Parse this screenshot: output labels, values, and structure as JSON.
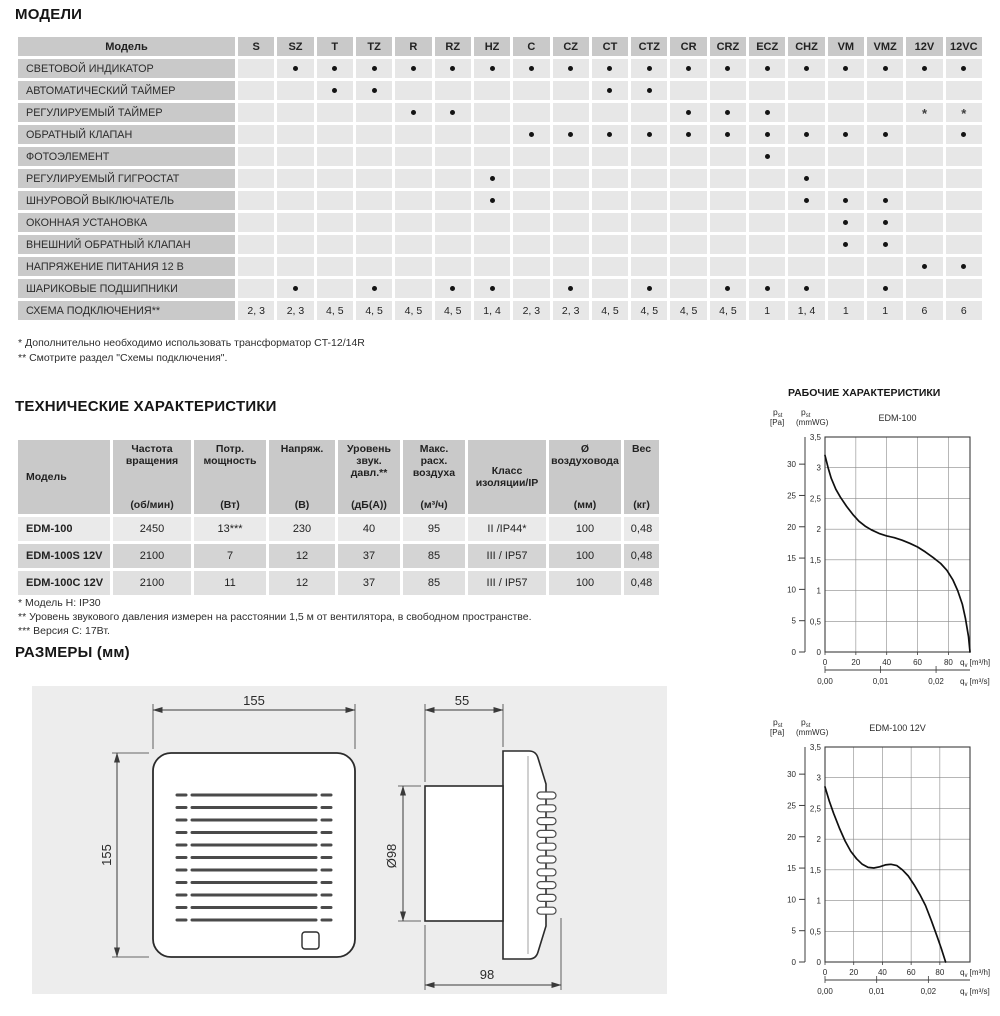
{
  "page": {
    "title_models": "МОДЕЛИ",
    "title_tech": "ТЕХНИЧЕСКИЕ ХАРАКТЕРИСТИКИ",
    "title_dims": "РАЗМЕРЫ (мм)",
    "title_charts": "РАБОЧИЕ ХАРАКТЕРИСТИКИ"
  },
  "models_table": {
    "header_label": "Модель",
    "columns": [
      "S",
      "SZ",
      "T",
      "TZ",
      "R",
      "RZ",
      "HZ",
      "C",
      "CZ",
      "CT",
      "CTZ",
      "CR",
      "CRZ",
      "ECZ",
      "CHZ",
      "VM",
      "VMZ",
      "12V",
      "12VC"
    ],
    "rows": [
      {
        "label": "СВЕТОВОЙ ИНДИКАТОР",
        "cells": [
          "",
          "D",
          "D",
          "D",
          "D",
          "D",
          "D",
          "D",
          "D",
          "D",
          "D",
          "D",
          "D",
          "D",
          "D",
          "D",
          "D",
          "D",
          "D"
        ]
      },
      {
        "label": "АВТОМАТИЧЕСКИЙ ТАЙМЕР",
        "cells": [
          "",
          "",
          "D",
          "D",
          "",
          "",
          "",
          "",
          "",
          "D",
          "D",
          "",
          "",
          "",
          "",
          "",
          "",
          "",
          ""
        ]
      },
      {
        "label": "РЕГУЛИРУЕМЫЙ ТАЙМЕР",
        "cells": [
          "",
          "",
          "",
          "",
          "D",
          "D",
          "",
          "",
          "",
          "",
          "",
          "D",
          "D",
          "D",
          "",
          "",
          "",
          "S",
          "S"
        ]
      },
      {
        "label": "ОБРАТНЫЙ КЛАПАН",
        "cells": [
          "",
          "",
          "",
          "",
          "",
          "",
          "",
          "D",
          "D",
          "D",
          "D",
          "D",
          "D",
          "D",
          "D",
          "D",
          "D",
          "",
          "D"
        ]
      },
      {
        "label": "ФОТОЭЛЕМЕНТ",
        "cells": [
          "",
          "",
          "",
          "",
          "",
          "",
          "",
          "",
          "",
          "",
          "",
          "",
          "",
          "D",
          "",
          "",
          "",
          "",
          ""
        ]
      },
      {
        "label": "РЕГУЛИРУЕМЫЙ ГИГРОСТАТ",
        "cells": [
          "",
          "",
          "",
          "",
          "",
          "",
          "D",
          "",
          "",
          "",
          "",
          "",
          "",
          "",
          "D",
          "",
          "",
          "",
          ""
        ]
      },
      {
        "label": "ШНУРОВОЙ ВЫКЛЮЧАТЕЛЬ",
        "cells": [
          "",
          "",
          "",
          "",
          "",
          "",
          "D",
          "",
          "",
          "",
          "",
          "",
          "",
          "",
          "D",
          "D",
          "D",
          "",
          ""
        ]
      },
      {
        "label": "ОКОННАЯ УСТАНОВКА",
        "cells": [
          "",
          "",
          "",
          "",
          "",
          "",
          "",
          "",
          "",
          "",
          "",
          "",
          "",
          "",
          "",
          "D",
          "D",
          "",
          ""
        ]
      },
      {
        "label": "ВНЕШНИЙ ОБРАТНЫЙ КЛАПАН",
        "cells": [
          "",
          "",
          "",
          "",
          "",
          "",
          "",
          "",
          "",
          "",
          "",
          "",
          "",
          "",
          "",
          "D",
          "D",
          "",
          ""
        ]
      },
      {
        "label": "НАПРЯЖЕНИЕ ПИТАНИЯ 12 В",
        "cells": [
          "",
          "",
          "",
          "",
          "",
          "",
          "",
          "",
          "",
          "",
          "",
          "",
          "",
          "",
          "",
          "",
          "",
          "D",
          "D"
        ]
      },
      {
        "label": "ШАРИКОВЫЕ ПОДШИПНИКИ",
        "cells": [
          "",
          "D",
          "",
          "D",
          "",
          "D",
          "D",
          "",
          "D",
          "",
          "D",
          "",
          "D",
          "D",
          "D",
          "",
          "D",
          "",
          ""
        ]
      },
      {
        "label": "СХЕМА ПОДКЛЮЧЕНИЯ**",
        "cells": [
          "2, 3",
          "2, 3",
          "4, 5",
          "4, 5",
          "4, 5",
          "4, 5",
          "1, 4",
          "2, 3",
          "2, 3",
          "4, 5",
          "4, 5",
          "4, 5",
          "4, 5",
          "1",
          "1, 4",
          "1",
          "1",
          "6",
          "6"
        ]
      }
    ],
    "footnotes": [
      "* Дополнительно необходимо использовать трансформатор CT-12/14R",
      "** Смотрите раздел \"Схемы подключения\"."
    ]
  },
  "tech_table": {
    "columns": [
      {
        "name": "Модель",
        "unit": ""
      },
      {
        "name": "Частота вращения",
        "unit": "(об/мин)"
      },
      {
        "name": "Потр. мощность",
        "unit": "(Вт)"
      },
      {
        "name": "Напряж.",
        "unit": "(В)"
      },
      {
        "name": "Уровень звук. давл.**",
        "unit": "(дБ(А))"
      },
      {
        "name": "Макс. расх. воздуха",
        "unit": "(м³/ч)"
      },
      {
        "name": "Класс изоляции/IP",
        "unit": ""
      },
      {
        "name": "Ø воздуховода",
        "unit": "(мм)"
      },
      {
        "name": "Вес",
        "unit": "(кг)"
      }
    ],
    "rows": [
      [
        "EDM-100",
        "2450",
        "13***",
        "230",
        "40",
        "95",
        "II /IP44*",
        "100",
        "0,48"
      ],
      [
        "EDM-100S 12V",
        "2100",
        "7",
        "12",
        "37",
        "85",
        "III / IP57",
        "100",
        "0,48"
      ],
      [
        "EDM-100C 12V",
        "2100",
        "11",
        "12",
        "37",
        "85",
        "III / IP57",
        "100",
        "0,48"
      ]
    ],
    "footnotes": [
      "* Модель H: IP30",
      "** Уровень звукового давления измерен на расстоянии 1,5 м от вентилятора, в свободном пространстве.",
      "*** Версия C: 17Вт."
    ]
  },
  "dimensions": {
    "front_width": "155",
    "front_height": "155",
    "depth_front": "55",
    "depth_total": "98",
    "duct_diameter": "Ø98"
  },
  "chart_data": [
    {
      "type": "line",
      "title": "EDM-100",
      "y1_axis": {
        "label_main": "p",
        "label_sub": "st",
        "unit": "[Pa]",
        "ticks": [
          0,
          5,
          10,
          15,
          20,
          25,
          30
        ]
      },
      "y2_axis": {
        "label_main": "p",
        "label_sub": "st",
        "unit": "(mmWG)",
        "ticks": [
          0,
          0.5,
          1,
          1.5,
          2,
          2.5,
          3,
          3.5
        ],
        "max": 3.5
      },
      "x1_axis": {
        "unit_main": "q",
        "unit_sub": "v",
        "unit_rest": " [m³/h]",
        "ticks": [
          0,
          20,
          40,
          60,
          80
        ],
        "max": 94
      },
      "x2_axis": {
        "unit_main": "q",
        "unit_sub": "v",
        "unit_rest": " [m³/s]",
        "ticks": [
          [
            "0,00",
            0
          ],
          [
            "0,01",
            36
          ],
          [
            "0,02",
            72
          ]
        ]
      },
      "grid": true,
      "curve_x": [
        0,
        2,
        4,
        7,
        10,
        14,
        18,
        22,
        26,
        30,
        35,
        40,
        45,
        50,
        55,
        60,
        65,
        70,
        75,
        79,
        83,
        86,
        89,
        91,
        93,
        94
      ],
      "curve_y_mmwg": [
        3.2,
        3.0,
        2.83,
        2.65,
        2.52,
        2.37,
        2.24,
        2.13,
        2.05,
        1.99,
        1.93,
        1.89,
        1.86,
        1.82,
        1.77,
        1.71,
        1.63,
        1.54,
        1.44,
        1.33,
        1.17,
        1.0,
        0.78,
        0.55,
        0.25,
        0.0
      ]
    },
    {
      "type": "line",
      "title": "EDM-100 12V",
      "y1_axis": {
        "label_main": "p",
        "label_sub": "st",
        "unit": "[Pa]",
        "ticks": [
          0,
          5,
          10,
          15,
          20,
          25,
          30
        ]
      },
      "y2_axis": {
        "label_main": "p",
        "label_sub": "st",
        "unit": "(mmWG)",
        "ticks": [
          0,
          0.5,
          1,
          1.5,
          2,
          2.5,
          3,
          3.5
        ],
        "max": 3.5
      },
      "x1_axis": {
        "unit_main": "q",
        "unit_sub": "v",
        "unit_rest": " [m³/h]",
        "ticks": [
          0,
          20,
          40,
          60,
          80
        ],
        "max": 101
      },
      "x2_axis": {
        "unit_main": "q",
        "unit_sub": "v",
        "unit_rest": " [m³/s]",
        "ticks": [
          [
            "0,00",
            0
          ],
          [
            "0,01",
            36
          ],
          [
            "0,02",
            72
          ]
        ]
      },
      "grid": true,
      "curve_x": [
        0,
        3,
        6,
        10,
        14,
        18,
        22,
        26,
        30,
        34,
        38,
        42,
        46,
        50,
        54,
        58,
        62,
        66,
        70,
        74,
        78,
        81,
        84
      ],
      "curve_y_mmwg": [
        2.85,
        2.62,
        2.42,
        2.18,
        1.97,
        1.8,
        1.68,
        1.59,
        1.54,
        1.53,
        1.55,
        1.58,
        1.59,
        1.57,
        1.5,
        1.4,
        1.26,
        1.1,
        0.92,
        0.68,
        0.42,
        0.22,
        0.0
      ]
    }
  ]
}
